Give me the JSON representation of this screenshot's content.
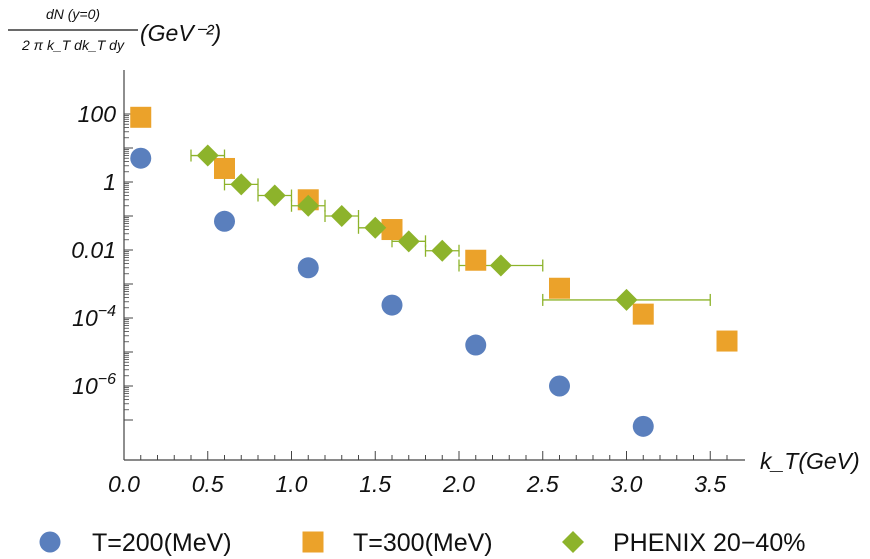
{
  "chart_data": {
    "type": "scatter",
    "scale": {
      "x": "linear",
      "y": "log"
    },
    "xlim": [
      0,
      3.7
    ],
    "ylim": [
      1e-08,
      1000
    ],
    "grid": false,
    "legend_position": "bottom",
    "y_label": {
      "numerator": "dN (y=0)",
      "denominator": "2 π k_T dk_T dy",
      "unit": "(GeV⁻²)"
    },
    "x_label": "k_T(GeV)",
    "x_ticks": [
      {
        "value": 0.0,
        "label": "0.0"
      },
      {
        "value": 0.5,
        "label": "0.5"
      },
      {
        "value": 1.0,
        "label": "1.0"
      },
      {
        "value": 1.5,
        "label": "1.5"
      },
      {
        "value": 2.0,
        "label": "2.0"
      },
      {
        "value": 2.5,
        "label": "2.5"
      },
      {
        "value": 3.0,
        "label": "3.0"
      },
      {
        "value": 3.5,
        "label": "3.5"
      }
    ],
    "y_ticks": [
      {
        "value": 100,
        "label": "100"
      },
      {
        "value": 1,
        "label": "1"
      },
      {
        "value": 0.01,
        "label": "0.01"
      },
      {
        "value": 0.0001,
        "label": "10",
        "exp": "−4"
      },
      {
        "value": 1e-06,
        "label": "10",
        "exp": "−6"
      }
    ],
    "series": [
      {
        "name": "T=200(MeV)",
        "color": "#5a7fbd",
        "marker": "circle",
        "x": [
          0.1,
          0.6,
          1.1,
          1.6,
          2.1,
          2.6,
          3.1
        ],
        "y": [
          5.0,
          0.07,
          0.003,
          0.00024,
          1.6e-05,
          1e-06,
          6.5e-08
        ]
      },
      {
        "name": "T=300(MeV)",
        "color": "#eba22a",
        "marker": "square",
        "x": [
          0.1,
          0.6,
          1.1,
          1.6,
          2.1,
          2.6,
          3.1,
          3.6
        ],
        "y": [
          80,
          2.5,
          0.3,
          0.04,
          0.005,
          0.00075,
          0.00013,
          2.1e-05
        ]
      },
      {
        "name": "PHENIX 20−40%",
        "color": "#8db32b",
        "marker": "diamond",
        "x": [
          0.5,
          0.7,
          0.9,
          1.1,
          1.3,
          1.5,
          1.7,
          1.9,
          2.25,
          3.0
        ],
        "y": [
          6.0,
          0.85,
          0.4,
          0.2,
          0.1,
          0.045,
          0.018,
          0.0095,
          0.0035,
          0.00034
        ],
        "x_err": [
          [
            0.4,
            0.6
          ],
          [
            0.6,
            0.8
          ],
          [
            0.8,
            1.0
          ],
          [
            1.0,
            1.2
          ],
          [
            1.2,
            1.4
          ],
          [
            1.4,
            1.6
          ],
          [
            1.6,
            1.8
          ],
          [
            1.8,
            2.0
          ],
          [
            2.0,
            2.5
          ],
          [
            2.5,
            3.5
          ]
        ]
      }
    ]
  }
}
